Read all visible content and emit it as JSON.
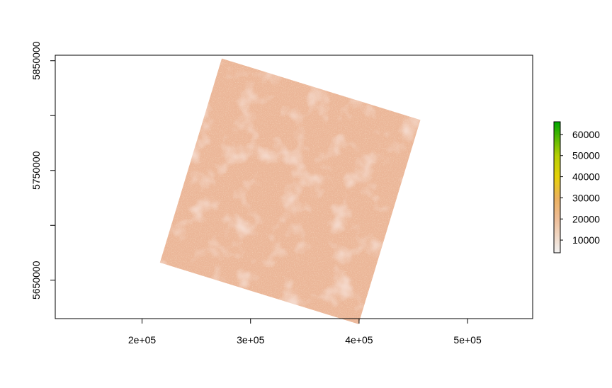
{
  "chart_data": {
    "type": "heatmap",
    "title": "",
    "xlabel": "",
    "ylabel": "",
    "xlim": [
      120000,
      560000
    ],
    "ylim": [
      5615000,
      5855000
    ],
    "x_ticks": [
      {
        "value": 200000,
        "label": "2e+05"
      },
      {
        "value": 300000,
        "label": "3e+05"
      },
      {
        "value": 400000,
        "label": "4e+05"
      },
      {
        "value": 500000,
        "label": "5e+05"
      }
    ],
    "y_ticks": [
      {
        "value": 5650000,
        "label": "5650000"
      },
      {
        "value": 5700000,
        "label": ""
      },
      {
        "value": 5750000,
        "label": "5750000"
      },
      {
        "value": 5800000,
        "label": ""
      },
      {
        "value": 5850000,
        "label": "5850000"
      }
    ],
    "raster_footprint": [
      {
        "x": 273500,
        "y": 5852000
      },
      {
        "x": 456500,
        "y": 5796000
      },
      {
        "x": 399500,
        "y": 5610000
      },
      {
        "x": 216500,
        "y": 5666000
      }
    ],
    "legend": {
      "range": [
        4000,
        66000
      ],
      "ticks": [
        10000,
        20000,
        30000,
        40000,
        50000,
        60000
      ],
      "tick_labels": [
        "10000",
        "20000",
        "30000",
        "40000",
        "50000",
        "60000"
      ],
      "colors": [
        {
          "value": 4000,
          "color": "#f2f2f2"
        },
        {
          "value": 20000,
          "color": "#eebe99"
        },
        {
          "value": 30000,
          "color": "#ecb15f"
        },
        {
          "value": 40000,
          "color": "#e6d10a"
        },
        {
          "value": 50000,
          "color": "#b7cf04"
        },
        {
          "value": 66000,
          "color": "#00a600"
        }
      ]
    }
  }
}
